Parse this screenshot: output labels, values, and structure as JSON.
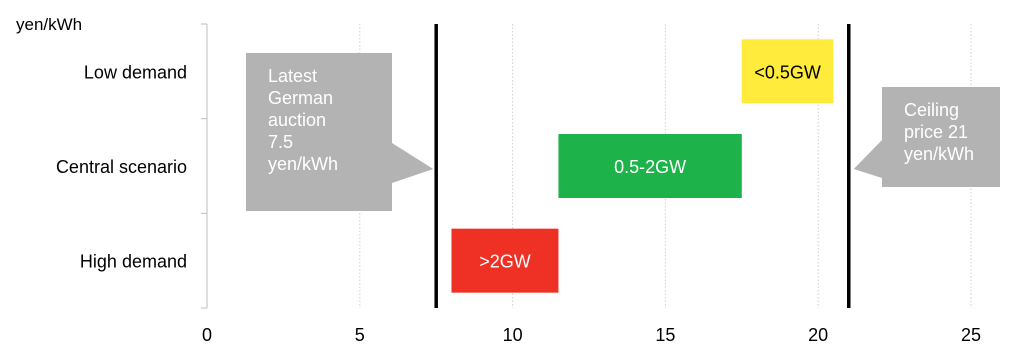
{
  "chart_data": {
    "type": "bar",
    "orientation": "horizontal-range",
    "ylabel": "yen/kWh",
    "categories": [
      "Low demand",
      "Central scenario",
      "High demand"
    ],
    "xlim": [
      0,
      25
    ],
    "xticks": [
      0,
      5,
      10,
      15,
      20,
      25
    ],
    "grid": "vertical-dotted",
    "ranges": [
      {
        "category": "Low demand",
        "start": 17.5,
        "end": 20.5,
        "label": "<0.5GW",
        "color": "#ffeb3b",
        "text_color": "#000000"
      },
      {
        "category": "Central scenario",
        "start": 11.5,
        "end": 17.5,
        "label": "0.5-2GW",
        "color": "#1db34a",
        "text_color": "#ffffff"
      },
      {
        "category": "High demand",
        "start": 8.0,
        "end": 11.5,
        "label": ">2GW",
        "color": "#ee3124",
        "text_color": "#ffffff"
      }
    ],
    "reference_lines": [
      {
        "value": 7.5,
        "callout_lines": [
          "Latest",
          "German",
          "auction",
          "7.5",
          "yen/kWh"
        ],
        "callout_side": "left"
      },
      {
        "value": 21,
        "callout_lines": [
          "Ceiling",
          "price 21",
          "yen/kWh"
        ],
        "callout_side": "right"
      }
    ],
    "callout_color": "#b3b3b3"
  }
}
